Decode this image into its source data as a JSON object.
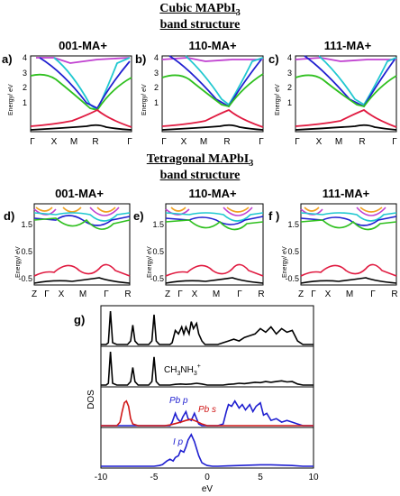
{
  "titles": {
    "cubic_line1": "Cubic MAPbI",
    "cubic_sub": "3",
    "cubic_line2": "band structure",
    "tetra_line1": "Tetragonal MAPbI",
    "tetra_sub": "3",
    "tetra_line2": "band structure"
  },
  "chart_data": [
    {
      "type": "line",
      "panel": "a)",
      "title": "001-MA+",
      "ylabel": "Energy/ eV",
      "ylim": [
        -1,
        4
      ],
      "yticks": [
        "1",
        "2",
        "3",
        "4"
      ],
      "xticks": [
        "Γ",
        "X",
        "M",
        "R",
        "Γ"
      ]
    },
    {
      "type": "line",
      "panel": "b)",
      "title": "110-MA+",
      "ylabel": "Energy/ eV",
      "ylim": [
        -1,
        4
      ],
      "yticks": [
        "1",
        "2",
        "3",
        "4"
      ],
      "xticks": [
        "Γ",
        "X",
        "M",
        "R",
        "Γ"
      ]
    },
    {
      "type": "line",
      "panel": "c)",
      "title": "111-MA+",
      "ylabel": "Energy/ eV",
      "ylim": [
        -1,
        4
      ],
      "yticks": [
        "1",
        "2",
        "3",
        "4"
      ],
      "xticks": [
        "Γ",
        "X",
        "M",
        "R",
        "Γ"
      ]
    },
    {
      "type": "line",
      "panel": "d)",
      "title": "001-MA+",
      "ylabel": "Energy/ eV",
      "ylim": [
        -0.8,
        2.2
      ],
      "yticks": [
        "-0.5",
        "0.5",
        "1.5"
      ],
      "xticks": [
        "Z",
        "Γ",
        "X",
        "M",
        "Γ",
        "R"
      ]
    },
    {
      "type": "line",
      "panel": "e)",
      "title": "110-MA+",
      "ylabel": "Energy/ eV",
      "ylim": [
        -0.8,
        2.2
      ],
      "yticks": [
        "-0.5",
        "0.5",
        "1.5"
      ],
      "xticks": [
        "Z",
        "Γ",
        "X",
        "M",
        "Γ",
        "R"
      ]
    },
    {
      "type": "line",
      "panel": "f )",
      "title": "111-MA+",
      "ylabel": "Energy/ eV",
      "ylim": [
        -0.8,
        2.2
      ],
      "yticks": [
        "-0.5",
        "0.5",
        "1.5"
      ],
      "xticks": [
        "Z",
        "Γ",
        "X",
        "M",
        "Γ",
        "R"
      ]
    },
    {
      "type": "line",
      "panel": "g)",
      "xlabel": "eV",
      "ylabel": "DOS",
      "xlim": [
        -10,
        10
      ],
      "xticks": [
        "-10",
        "-5",
        "0",
        "5",
        "10"
      ],
      "annotations": {
        "ch3nh3": "CH",
        "pbp": "Pb p",
        "pbs": "Pb s",
        "ip": "I p"
      },
      "series": [
        {
          "name": "",
          "color": "#000000",
          "subplot": 1,
          "x": [
            -10,
            -9.8,
            -9.5,
            -9.3,
            -9.1,
            -8.9,
            -8.5,
            -8,
            -7.5,
            -7.2,
            -7,
            -6.8,
            -6.5,
            -6,
            -5.5,
            -5.2,
            -5.0,
            -4.8,
            -4.5,
            -4,
            -3.5,
            -3.3,
            -3.0,
            -2.7,
            -2.4,
            -2.2,
            -2.0,
            -1.7,
            -1.5,
            -1.3,
            -1.0,
            -0.8,
            -0.5,
            -0.2,
            0,
            0.5,
            1,
            1.5,
            2,
            2.5,
            3,
            3.5,
            4,
            4.5,
            5,
            5.5,
            6,
            6.5,
            7,
            7.5,
            8,
            8.5,
            9,
            9.5,
            10
          ],
          "y": [
            0,
            0,
            0,
            0.05,
            0.95,
            0.05,
            0,
            0,
            0,
            0.1,
            0.55,
            0.1,
            0,
            0,
            0,
            0.1,
            0.85,
            0.1,
            0,
            0,
            0,
            0.05,
            0.4,
            0.3,
            0.5,
            0.3,
            0.5,
            0.3,
            0.65,
            0.45,
            0.6,
            0.3,
            0.1,
            0,
            0,
            0,
            0,
            0.05,
            0.1,
            0.15,
            0.1,
            0.2,
            0.25,
            0.3,
            0.45,
            0.35,
            0.5,
            0.3,
            0.45,
            0.35,
            0.4,
            0.1,
            0,
            0,
            0
          ]
        },
        {
          "name": "",
          "color": "#000000",
          "subplot": 2,
          "x": [
            -10,
            -9.8,
            -9.5,
            -9.3,
            -9.1,
            -8.9,
            -8.5,
            -8,
            -7.5,
            -7.2,
            -7,
            -6.8,
            -6.5,
            -6,
            -5.5,
            -5.2,
            -5.0,
            -4.8,
            -4.5,
            -4,
            -3.5,
            -3.0,
            -2.5,
            -2,
            -1.5,
            -1,
            -0.5,
            0,
            0.5,
            1,
            1.5,
            2,
            2.5,
            3,
            3.5,
            4,
            4.5,
            5,
            5.5,
            6,
            6.5,
            7,
            7.5,
            8,
            8.5,
            9,
            9.5,
            10
          ],
          "y": [
            0,
            0,
            0,
            0.05,
            0.95,
            0.05,
            0,
            0,
            0,
            0.1,
            0.5,
            0.1,
            0,
            0,
            0,
            0.1,
            0.8,
            0.1,
            0,
            0,
            0,
            0.02,
            0.03,
            0.02,
            0.03,
            0.05,
            0.03,
            0,
            0,
            0,
            0,
            0.02,
            0.03,
            0.05,
            0.04,
            0.06,
            0.08,
            0.07,
            0.1,
            0.08,
            0.1,
            0.12,
            0.09,
            0.1,
            0.03,
            0,
            0,
            0
          ]
        },
        {
          "name": "Pb p",
          "color": "#1f1fd0",
          "subplot": 3,
          "x": [
            -10,
            -4,
            -3.5,
            -3.3,
            -3.0,
            -2.8,
            -2.5,
            -2.3,
            -2.0,
            -1.8,
            -1.5,
            -1.2,
            -1.0,
            -0.8,
            -0.5,
            0,
            0.5,
            1,
            1.5,
            1.8,
            2.0,
            2.3,
            2.6,
            3.0,
            3.3,
            3.6,
            4.0,
            4.3,
            4.6,
            5.0,
            5.3,
            5.6,
            6.0,
            6.5,
            7,
            7.5,
            8,
            8.5,
            9,
            10
          ],
          "y": [
            0,
            0,
            0,
            0.1,
            0.35,
            0.2,
            0.1,
            0.25,
            0.4,
            0.2,
            0.15,
            0.35,
            0.2,
            0.05,
            0,
            0,
            0,
            0,
            0.05,
            0.4,
            0.6,
            0.55,
            0.7,
            0.5,
            0.6,
            0.45,
            0.6,
            0.4,
            0.55,
            0.65,
            0.3,
            0.35,
            0.15,
            0.2,
            0.1,
            0.15,
            0.1,
            0.05,
            0,
            0
          ]
        },
        {
          "name": "Pb s",
          "color": "#d01818",
          "subplot": 3,
          "x": [
            -10,
            -8.5,
            -8.2,
            -8.0,
            -7.8,
            -7.6,
            -7.4,
            -7.2,
            -7.0,
            -6.5,
            -4,
            -3.5,
            -3.0,
            -2.5,
            -2.0,
            -1.5,
            -1.0,
            -0.5,
            0,
            0.5,
            10
          ],
          "y": [
            0,
            0,
            0.1,
            0.4,
            0.65,
            0.7,
            0.55,
            0.2,
            0.05,
            0,
            0,
            0.02,
            0.06,
            0.1,
            0.15,
            0.18,
            0.12,
            0.05,
            0,
            0,
            0
          ]
        },
        {
          "name": "I p",
          "color": "#1f1fd0",
          "subplot": 4,
          "x": [
            -10,
            -6,
            -5,
            -4.5,
            -4.2,
            -4.0,
            -3.8,
            -3.5,
            -3.2,
            -3.0,
            -2.7,
            -2.5,
            -2.2,
            -2.0,
            -1.8,
            -1.5,
            -1.2,
            -1.0,
            -0.8,
            -0.5,
            -0.2,
            0,
            0.5,
            1,
            2,
            3,
            4,
            5,
            6,
            7,
            8,
            9,
            10
          ],
          "y": [
            0,
            0,
            0,
            0.02,
            0.05,
            0.1,
            0.15,
            0.2,
            0.15,
            0.25,
            0.3,
            0.45,
            0.4,
            0.55,
            0.75,
            0.9,
            0.7,
            0.5,
            0.3,
            0.1,
            0.05,
            0.02,
            0,
            0,
            0.01,
            0.02,
            0.03,
            0.04,
            0.04,
            0.03,
            0.02,
            0,
            0
          ]
        }
      ]
    }
  ]
}
